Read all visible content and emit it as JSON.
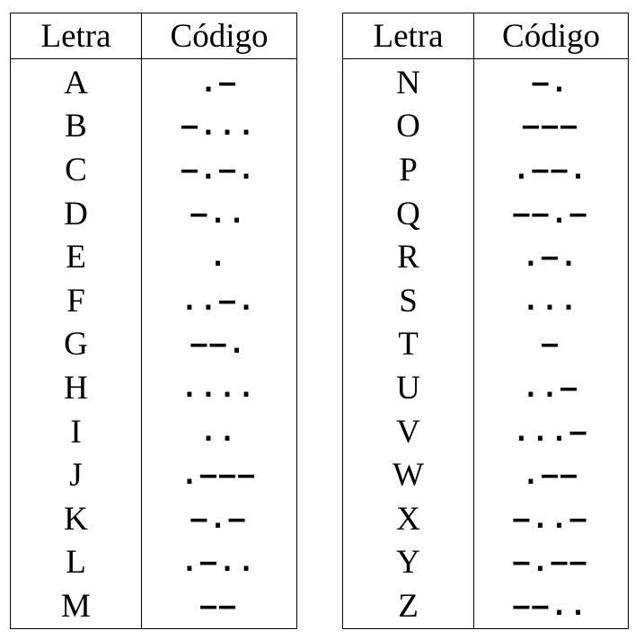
{
  "headers": {
    "letter": "Letra",
    "code": "Código"
  },
  "left": [
    {
      "letter": "A",
      "code": ".–"
    },
    {
      "letter": "B",
      "code": "–..."
    },
    {
      "letter": "C",
      "code": "–.–."
    },
    {
      "letter": "D",
      "code": "–.."
    },
    {
      "letter": "E",
      "code": "."
    },
    {
      "letter": "F",
      "code": "..–."
    },
    {
      "letter": "G",
      "code": "––."
    },
    {
      "letter": "H",
      "code": "...."
    },
    {
      "letter": "I",
      "code": ".."
    },
    {
      "letter": "J",
      "code": ".–––"
    },
    {
      "letter": "K",
      "code": "–.–"
    },
    {
      "letter": "L",
      "code": ".–.."
    },
    {
      "letter": "M",
      "code": "––"
    }
  ],
  "right": [
    {
      "letter": "N",
      "code": "–."
    },
    {
      "letter": "O",
      "code": "–––"
    },
    {
      "letter": "P",
      "code": ".––."
    },
    {
      "letter": "Q",
      "code": "––.–"
    },
    {
      "letter": "R",
      "code": ".–."
    },
    {
      "letter": "S",
      "code": "..."
    },
    {
      "letter": "T",
      "code": "–"
    },
    {
      "letter": "U",
      "code": "..–"
    },
    {
      "letter": "V",
      "code": "...–"
    },
    {
      "letter": "W",
      "code": ".––"
    },
    {
      "letter": "X",
      "code": "–..–"
    },
    {
      "letter": "Y",
      "code": "–.––"
    },
    {
      "letter": "Z",
      "code": "––.."
    }
  ]
}
